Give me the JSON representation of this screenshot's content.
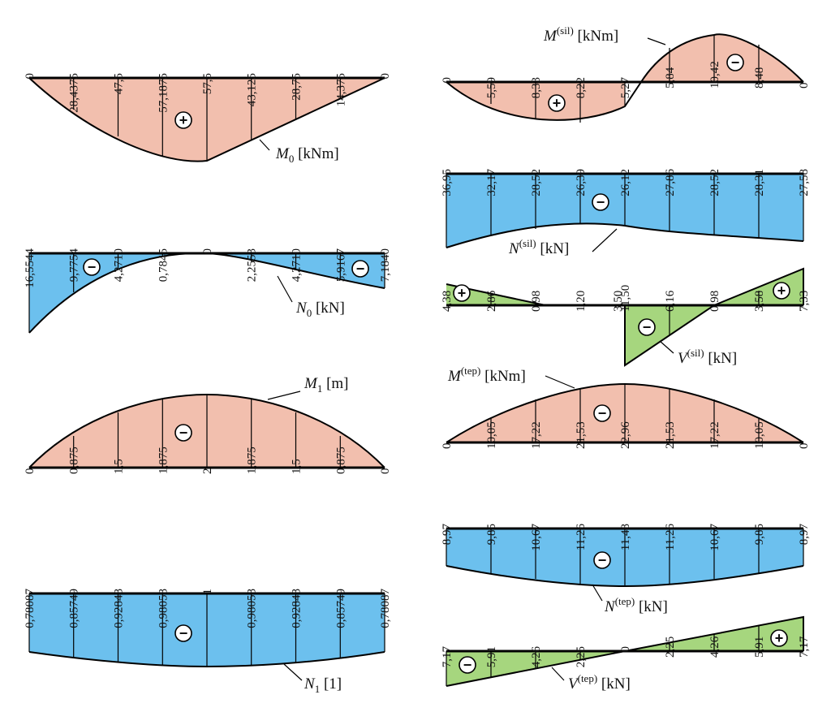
{
  "colors": {
    "moment": "#f2bfae",
    "normal": "#6cc0ee",
    "shear": "#a6d67e",
    "line": "#000000"
  },
  "diagrams": [
    {
      "id": "m0",
      "label": "M",
      "sub": "0",
      "sup": "",
      "unit": "[kNm]",
      "color": "moment",
      "values": [
        "0",
        "28,4375",
        "47,5",
        "57,1875",
        "57,5",
        "43,125",
        "28,75",
        "14,375",
        "0"
      ],
      "signs": [
        "+"
      ]
    },
    {
      "id": "n0",
      "label": "N",
      "sub": "0",
      "sup": "",
      "unit": "[kN]",
      "color": "normal",
      "values": [
        "16,5544",
        "9,7754",
        "4,2710",
        "0,7845",
        "0",
        "2,2553",
        "4,2710",
        "5,9167",
        "7,1840"
      ],
      "signs": [
        "−",
        "−"
      ]
    },
    {
      "id": "m1",
      "label": "M",
      "sub": "1",
      "sup": "",
      "unit": "[m]",
      "color": "moment",
      "values": [
        "0",
        "0,875",
        "1,5",
        "1,875",
        "2",
        "1,875",
        "1,5",
        "0,875",
        "0"
      ],
      "signs": [
        "−"
      ]
    },
    {
      "id": "n1",
      "label": "N",
      "sub": "1",
      "sup": "",
      "unit": "[1]",
      "color": "normal",
      "values": [
        "0,78087",
        "0,85749",
        "0,92848",
        "0,98058",
        "1",
        "0,98058",
        "0,92848",
        "0,85749",
        "0,78087"
      ],
      "signs": [
        "−"
      ]
    },
    {
      "id": "msil",
      "label": "M",
      "sub": "",
      "sup": "(sil)",
      "unit": "[kNm]",
      "color": "moment",
      "values": [
        "0",
        "5,59",
        "8,33",
        "8,22",
        "5,27",
        "5,84",
        "10,42",
        "8,48",
        "0"
      ],
      "signs": [
        "+",
        "−"
      ]
    },
    {
      "id": "nsil",
      "label": "N",
      "sub": "",
      "sup": "(sil)",
      "unit": "[kN]",
      "color": "normal",
      "values": [
        "36,95",
        "32,17",
        "28,52",
        "26,39",
        "26,12",
        "27,86",
        "28,52",
        "28,31",
        "27,58"
      ],
      "signs": [
        "−"
      ]
    },
    {
      "id": "vsil",
      "label": "V",
      "sub": "",
      "sup": "(sil)",
      "unit": "[kN]",
      "color": "shear",
      "values": [
        "4,38",
        "2,86",
        "0,98",
        "1,20",
        "3,50",
        "11,50",
        "6,16",
        "0,98",
        "3,58",
        "7,33"
      ],
      "signs": [
        "+",
        "−",
        "+"
      ]
    },
    {
      "id": "mtep",
      "label": "M",
      "sub": "",
      "sup": "(tep)",
      "unit": "[kNm]",
      "color": "moment",
      "values": [
        "0",
        "10,05",
        "17,22",
        "21,53",
        "22,96",
        "21,53",
        "17,22",
        "10,05",
        "0"
      ],
      "signs": [
        "−"
      ]
    },
    {
      "id": "ntep",
      "label": "N",
      "sub": "",
      "sup": "(tep)",
      "unit": "[kN]",
      "color": "normal",
      "values": [
        "8,97",
        "9,85",
        "10,67",
        "11,26",
        "11,48",
        "11,26",
        "10,67",
        "9,85",
        "8,97"
      ],
      "signs": [
        "−"
      ]
    },
    {
      "id": "vtep",
      "label": "V",
      "sub": "",
      "sup": "(tep)",
      "unit": "[kN]",
      "color": "shear",
      "values": [
        "7,17",
        "5,91",
        "4,26",
        "2,25",
        "0",
        "2,25",
        "4,26",
        "5,91",
        "7,17"
      ],
      "signs": [
        "−",
        "+"
      ]
    }
  ]
}
